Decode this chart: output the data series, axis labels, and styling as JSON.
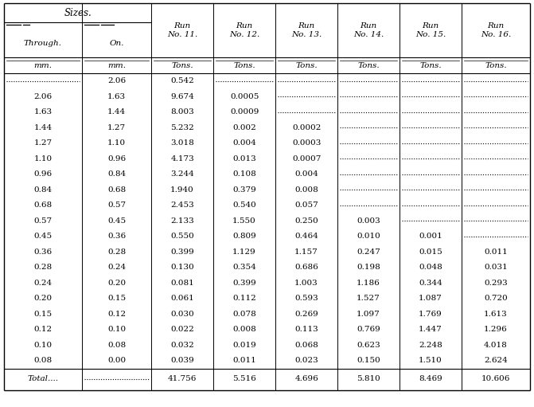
{
  "col_headers_run": [
    "Run\nNo. 11.",
    "Run\nNo. 12.",
    "Run\nNo. 13.",
    "Run\nNo. 14.",
    "Run\nNo. 15.",
    "Run\nNo. 16."
  ],
  "units": [
    "mm.",
    "mm.",
    "Tons.",
    "Tons.",
    "Tons.",
    "Tons.",
    "Tons.",
    "Tons."
  ],
  "rows": [
    [
      "............",
      "2.06",
      "0.542",
      "............",
      "............",
      "............",
      "............",
      "............"
    ],
    [
      "2.06",
      "1.63",
      "9.674",
      "0.0005",
      "............",
      "............",
      "............",
      "............"
    ],
    [
      "1.63",
      "1.44",
      "8.003",
      "0.0009",
      "............",
      "............",
      "............",
      "............"
    ],
    [
      "1.44",
      "1.27",
      "5.232",
      "0.002",
      "0.0002",
      "............",
      "............",
      "............"
    ],
    [
      "1.27",
      "1.10",
      "3.018",
      "0.004",
      "0.0003",
      "............",
      "............",
      "............"
    ],
    [
      "1.10",
      "0.96",
      "4.173",
      "0.013",
      "0.0007",
      "............",
      "............",
      "............"
    ],
    [
      "0.96",
      "0.84",
      "3.244",
      "0.108",
      "0.004",
      "............",
      "............",
      "............"
    ],
    [
      "0.84",
      "0.68",
      "1.940",
      "0.379",
      "0.008",
      "............",
      "............",
      "............"
    ],
    [
      "0.68",
      "0.57",
      "2.453",
      "0.540",
      "0.057",
      "............",
      "............",
      "............"
    ],
    [
      "0.57",
      "0.45",
      "2.133",
      "1.550",
      "0.250",
      "0.003",
      "............",
      "............"
    ],
    [
      "0.45",
      "0.36",
      "0.550",
      "0.809",
      "0.464",
      "0.010",
      "0.001",
      "............"
    ],
    [
      "0.36",
      "0.28",
      "0.399",
      "1.129",
      "1.157",
      "0.247",
      "0.015",
      "0.011"
    ],
    [
      "0.28",
      "0.24",
      "0.130",
      "0.354",
      "0.686",
      "0.198",
      "0.048",
      "0.031"
    ],
    [
      "0.24",
      "0.20",
      "0.081",
      "0.399",
      "1.003",
      "1.186",
      "0.344",
      "0.293"
    ],
    [
      "0.20",
      "0.15",
      "0.061",
      "0.112",
      "0.593",
      "1.527",
      "1.087",
      "0.720"
    ],
    [
      "0.15",
      "0.12",
      "0.030",
      "0.078",
      "0.269",
      "1.097",
      "1.769",
      "1.613"
    ],
    [
      "0.12",
      "0.10",
      "0.022",
      "0.008",
      "0.113",
      "0.769",
      "1.447",
      "1.296"
    ],
    [
      "0.10",
      "0.08",
      "0.032",
      "0.019",
      "0.068",
      "0.623",
      "2.248",
      "4.018"
    ],
    [
      "0.08",
      "0.00",
      "0.039",
      "0.011",
      "0.023",
      "0.150",
      "1.510",
      "2.624"
    ]
  ],
  "total_row": [
    "Total....",
    "...........",
    "41.756",
    "5.516",
    "4.696",
    "5.810",
    "8.469",
    "10.606"
  ],
  "bg_color": "#ffffff",
  "text_color": "#000000",
  "font_size": 7.5,
  "header_font_size": 8.5
}
